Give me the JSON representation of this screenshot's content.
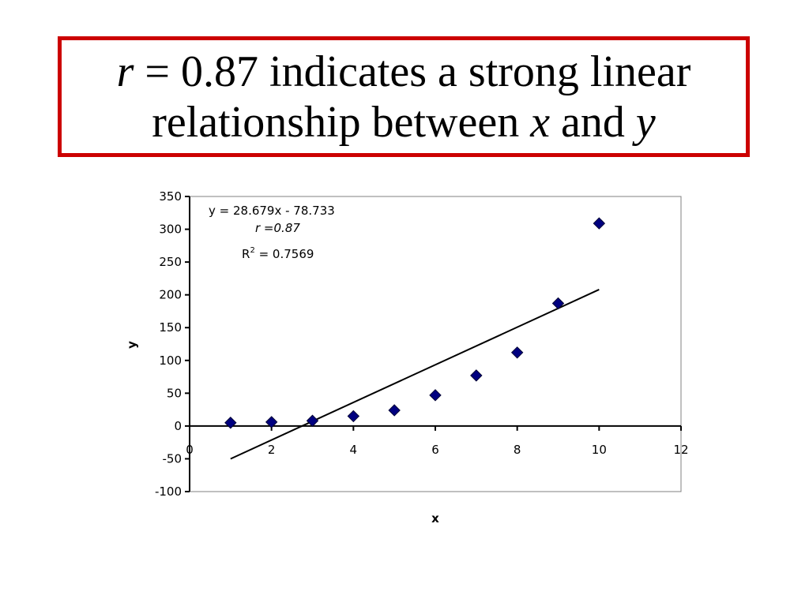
{
  "slide": {
    "title_r": "r",
    "title_l1_rest": " = 0.87 indicates a strong linear",
    "title_l2_a": "relationship between ",
    "title_l2_x": "x",
    "title_l2_b": " and ",
    "title_l2_y": "y",
    "border_color": "#cc0000"
  },
  "chart_data": {
    "type": "scatter",
    "title": "",
    "xlabel": "x",
    "ylabel": "y",
    "xlim": [
      0,
      12
    ],
    "ylim": [
      -100,
      350
    ],
    "xticks": [
      0,
      2,
      4,
      6,
      8,
      10,
      12
    ],
    "yticks": [
      350,
      300,
      250,
      200,
      150,
      100,
      50,
      0,
      -50,
      -100
    ],
    "grid": false,
    "legend": "none",
    "series": [
      {
        "x": [
          1,
          2,
          3,
          4,
          5,
          6,
          7,
          8,
          9,
          10
        ],
        "y": [
          5,
          6,
          8,
          15,
          24,
          47,
          77,
          112,
          187,
          309
        ],
        "marker": "diamond",
        "color": "#000080"
      }
    ],
    "trendline": {
      "type": "linear",
      "slope": 28.679,
      "intercept": -78.733,
      "x_range": [
        1,
        10
      ],
      "color": "#000000"
    },
    "annotations": {
      "equation": "y = 28.679x - 78.733",
      "r_label": "r =",
      "r_value": "0.87",
      "r2_prefix": "R",
      "r2_sup": "2",
      "r2_suffix": " = 0.7569"
    }
  }
}
